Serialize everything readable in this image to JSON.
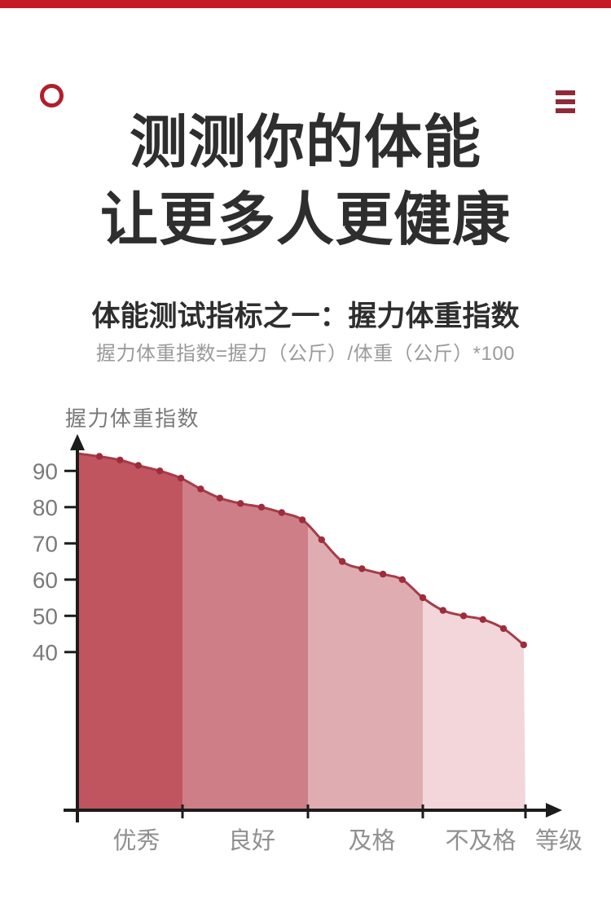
{
  "page": {
    "top_bar_color": "#c41b26",
    "background": "#ffffff"
  },
  "header": {
    "logo_icon": "red-ring",
    "logo_color": "#b01f2b",
    "menu_icon": "hamburger",
    "menu_color": "#8e2b37"
  },
  "hero": {
    "title_line1": "测测你的体能",
    "title_line2": "让更多人更健康",
    "title_color": "#2e2e2e"
  },
  "section": {
    "heading": "体能测试指标之一：握力体重指数",
    "formula": "握力体重指数=握力（公斤）/体重（公斤）*100"
  },
  "chart_data": {
    "type": "area",
    "ylabel": "握力体重指数",
    "xlabel": "等级",
    "y_ticks": [
      90,
      80,
      70,
      60,
      50,
      40
    ],
    "ylim_shown": [
      40,
      95
    ],
    "grid": false,
    "legend": "none",
    "categories": [
      "优秀",
      "良好",
      "及格",
      "不及格"
    ],
    "bands": [
      {
        "label": "优秀",
        "x_frac0": 0.0,
        "x_frac1": 0.2345,
        "color": "#c0545f"
      },
      {
        "label": "良好",
        "x_frac0": 0.2345,
        "x_frac1": 0.5145,
        "color": "#ce7e87"
      },
      {
        "label": "及格",
        "x_frac0": 0.5145,
        "x_frac1": 0.7709,
        "color": "#dfacb2"
      },
      {
        "label": "不及格",
        "x_frac0": 0.7709,
        "x_frac1": 1.0,
        "color": "#f2d6d9"
      }
    ],
    "start_value": 94.8,
    "points": [
      {
        "x_frac": 0.049,
        "value": 94
      },
      {
        "x_frac": 0.095,
        "value": 93
      },
      {
        "x_frac": 0.136,
        "value": 91.5
      },
      {
        "x_frac": 0.184,
        "value": 90
      },
      {
        "x_frac": 0.231,
        "value": 88
      },
      {
        "x_frac": 0.275,
        "value": 85
      },
      {
        "x_frac": 0.318,
        "value": 82.5
      },
      {
        "x_frac": 0.364,
        "value": 81
      },
      {
        "x_frac": 0.411,
        "value": 80
      },
      {
        "x_frac": 0.456,
        "value": 78.5
      },
      {
        "x_frac": 0.502,
        "value": 76.5
      },
      {
        "x_frac": 0.545,
        "value": 71
      },
      {
        "x_frac": 0.591,
        "value": 65
      },
      {
        "x_frac": 0.635,
        "value": 63
      },
      {
        "x_frac": 0.682,
        "value": 61.5
      },
      {
        "x_frac": 0.725,
        "value": 60
      },
      {
        "x_frac": 0.771,
        "value": 55
      },
      {
        "x_frac": 0.816,
        "value": 51.5
      },
      {
        "x_frac": 0.862,
        "value": 50
      },
      {
        "x_frac": 0.905,
        "value": 49
      },
      {
        "x_frac": 0.951,
        "value": 46.5
      },
      {
        "x_frac": 0.996,
        "value": 42
      }
    ],
    "line_color": "#a63c49",
    "dot_color": "#9e2c3b",
    "axis_color": "#1c1c1c",
    "tick_label_color": "#7a7a7a",
    "category_label_color": "#909090",
    "ylabel_color": "#7a7a7a"
  }
}
